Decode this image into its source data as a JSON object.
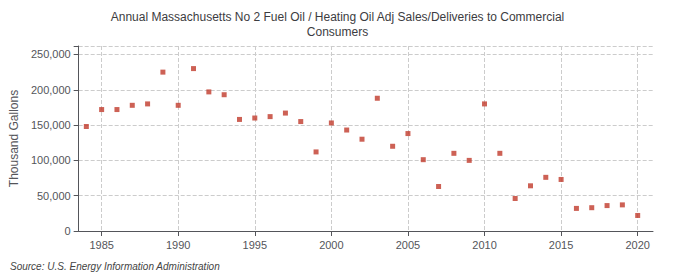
{
  "chart_data": {
    "type": "scatter",
    "title": "Annual Massachusetts No 2 Fuel Oil / Heating Oil Adj Sales/Deliveries to Commercial\nConsumers",
    "y_label": "Thousand Gallons",
    "source": "Source: U.S. Energy Information Administration",
    "color": "#c0392b",
    "marker": "square",
    "x": [
      1984,
      1985,
      1986,
      1987,
      1988,
      1989,
      1990,
      1991,
      1992,
      1993,
      1994,
      1995,
      1996,
      1997,
      1998,
      1999,
      2000,
      2001,
      2002,
      2003,
      2004,
      2005,
      2006,
      2007,
      2008,
      2009,
      2010,
      2011,
      2012,
      2013,
      2014,
      2015,
      2016,
      2017,
      2018,
      2019,
      2020
    ],
    "values": [
      148000,
      172000,
      172000,
      178000,
      180000,
      225000,
      178000,
      230000,
      197000,
      193000,
      158000,
      160000,
      162000,
      167000,
      155000,
      112000,
      153000,
      143000,
      130000,
      188000,
      120000,
      138000,
      101000,
      63000,
      110000,
      100000,
      180000,
      110000,
      46000,
      64000,
      76000,
      73000,
      32000,
      33000,
      36000,
      37000,
      22000
    ],
    "xlim": [
      1983.5,
      2021
    ],
    "xticks": [
      1985,
      1990,
      1995,
      2000,
      2005,
      2010,
      2015,
      2020
    ],
    "ylim": [
      0,
      262000
    ],
    "yticks": [
      0,
      {
        "value": 50000,
        "label": "50,000"
      },
      {
        "value": 100000,
        "label": "100,000"
      },
      {
        "value": 150000,
        "label": "150,000"
      },
      {
        "value": 200000,
        "label": "200,000"
      },
      {
        "value": 250000,
        "label": "250,000"
      }
    ],
    "grid": true
  }
}
